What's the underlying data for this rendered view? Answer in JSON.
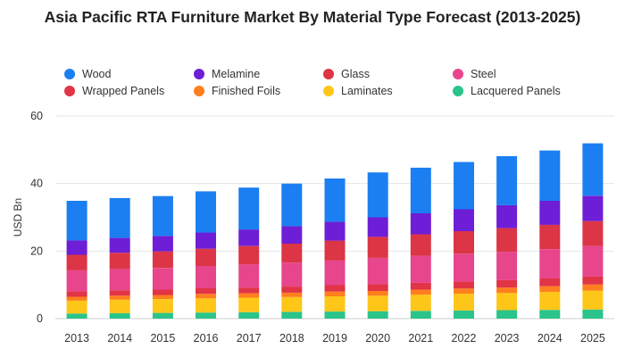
{
  "chart_data": {
    "type": "bar",
    "stacked": true,
    "title": "Asia Pacific RTA Furniture Market By Material Type Forecast (2013-2025)",
    "xlabel": "",
    "ylabel": "USD Bn",
    "ylim": [
      0,
      60
    ],
    "yticks": [
      "0",
      "20",
      "40",
      "60"
    ],
    "grid": true,
    "legend_position": "top",
    "categories": [
      "2013",
      "2014",
      "2015",
      "2016",
      "2017",
      "2018",
      "2019",
      "2020",
      "2021",
      "2022",
      "2023",
      "2024",
      "2025"
    ],
    "series": [
      {
        "name": "Lacquered Panels",
        "color": "#2bc48a",
        "values": [
          1.5,
          1.6,
          1.7,
          1.8,
          1.9,
          2.0,
          2.1,
          2.2,
          2.3,
          2.4,
          2.5,
          2.6,
          2.7
        ]
      },
      {
        "name": "Laminates",
        "color": "#ffc61a",
        "values": [
          3.8,
          4.0,
          4.1,
          4.2,
          4.3,
          4.4,
          4.5,
          4.6,
          4.8,
          5.0,
          5.1,
          5.3,
          5.6
        ]
      },
      {
        "name": "Finished Foils",
        "color": "#ff7f1e",
        "values": [
          1.2,
          1.2,
          1.2,
          1.3,
          1.3,
          1.3,
          1.4,
          1.4,
          1.5,
          1.5,
          1.6,
          1.7,
          1.8
        ]
      },
      {
        "name": "Wrapped Panels",
        "color": "#e13446",
        "values": [
          1.6,
          1.6,
          1.6,
          1.7,
          1.7,
          1.8,
          1.9,
          2.0,
          2.0,
          2.1,
          2.2,
          2.3,
          2.4
        ]
      },
      {
        "name": "Steel",
        "color": "#e7458c",
        "values": [
          6.2,
          6.3,
          6.4,
          6.6,
          6.9,
          7.1,
          7.3,
          7.8,
          8.0,
          8.2,
          8.4,
          8.7,
          9.0
        ]
      },
      {
        "name": "Glass",
        "color": "#dc3545",
        "values": [
          4.6,
          4.8,
          4.9,
          5.1,
          5.4,
          5.6,
          5.9,
          6.2,
          6.4,
          6.7,
          7.0,
          7.2,
          7.4
        ]
      },
      {
        "name": "Melamine",
        "color": "#6d1ed6",
        "values": [
          4.3,
          4.4,
          4.6,
          4.8,
          4.9,
          5.2,
          5.6,
          5.8,
          6.2,
          6.5,
          6.8,
          7.1,
          7.5
        ]
      },
      {
        "name": "Wood",
        "color": "#1b7ff2",
        "values": [
          11.7,
          11.8,
          11.8,
          12.2,
          12.4,
          12.6,
          12.8,
          13.3,
          13.5,
          14.0,
          14.5,
          14.9,
          15.5
        ]
      }
    ]
  },
  "legend": [
    {
      "label": "Wood",
      "color": "#1b7ff2"
    },
    {
      "label": "Melamine",
      "color": "#6d1ed6"
    },
    {
      "label": "Glass",
      "color": "#dc3545"
    },
    {
      "label": "Steel",
      "color": "#e7458c"
    },
    {
      "label": "Wrapped Panels",
      "color": "#e13446"
    },
    {
      "label": "Finished Foils",
      "color": "#ff7f1e"
    },
    {
      "label": "Laminates",
      "color": "#ffc61a"
    },
    {
      "label": "Lacquered Panels",
      "color": "#2bc48a"
    }
  ]
}
